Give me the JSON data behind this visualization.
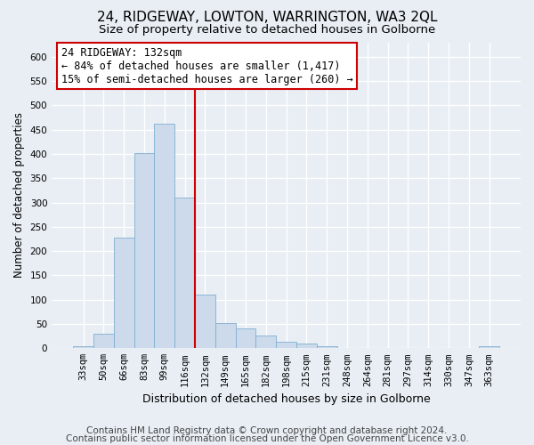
{
  "title": "24, RIDGEWAY, LOWTON, WARRINGTON, WA3 2QL",
  "subtitle": "Size of property relative to detached houses in Golborne",
  "xlabel": "Distribution of detached houses by size in Golborne",
  "ylabel": "Number of detached properties",
  "categories": [
    "33sqm",
    "50sqm",
    "66sqm",
    "83sqm",
    "99sqm",
    "116sqm",
    "132sqm",
    "149sqm",
    "165sqm",
    "182sqm",
    "198sqm",
    "215sqm",
    "231sqm",
    "248sqm",
    "264sqm",
    "281sqm",
    "297sqm",
    "314sqm",
    "330sqm",
    "347sqm",
    "363sqm"
  ],
  "values": [
    5,
    30,
    228,
    402,
    463,
    310,
    110,
    52,
    40,
    27,
    13,
    10,
    5,
    0,
    0,
    0,
    0,
    0,
    0,
    0,
    4
  ],
  "bar_color": "#ccdaeb",
  "bar_edge_color": "#7fafd0",
  "vline_x": 6.5,
  "vline_color": "#cc0000",
  "annotation_text": "24 RIDGEWAY: 132sqm\n← 84% of detached houses are smaller (1,417)\n15% of semi-detached houses are larger (260) →",
  "annotation_box_color": "#ffffff",
  "annotation_box_edge_color": "#cc0000",
  "ylim": [
    0,
    630
  ],
  "yticks": [
    0,
    50,
    100,
    150,
    200,
    250,
    300,
    350,
    400,
    450,
    500,
    550,
    600
  ],
  "background_color": "#e8eef4",
  "grid_color": "#ffffff",
  "footer1": "Contains HM Land Registry data © Crown copyright and database right 2024.",
  "footer2": "Contains public sector information licensed under the Open Government Licence v3.0.",
  "title_fontsize": 11,
  "subtitle_fontsize": 9.5,
  "ylabel_fontsize": 8.5,
  "xlabel_fontsize": 9,
  "tick_fontsize": 7.5,
  "footer_fontsize": 7.5,
  "ann_fontsize": 8.5
}
